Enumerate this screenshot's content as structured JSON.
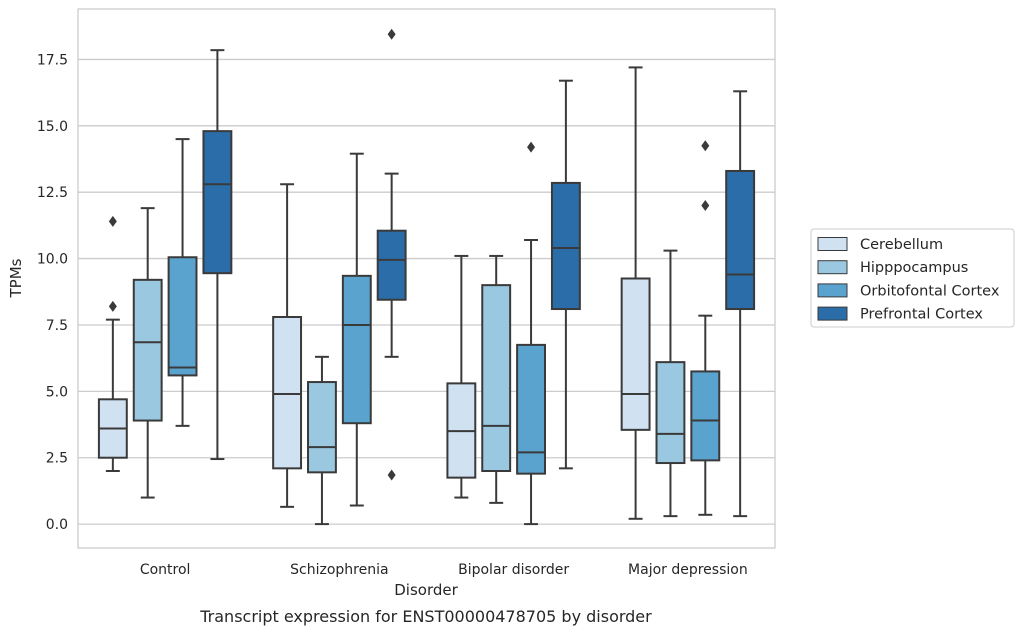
{
  "caption": "Transcript expression for ENST00000478705 by disorder",
  "chart_data": {
    "type": "box",
    "title": "",
    "xlabel": "Disorder",
    "ylabel": "TPMs",
    "ylim": [
      -0.9,
      19.4
    ],
    "yticks": [
      "0.0",
      "2.5",
      "5.0",
      "7.5",
      "10.0",
      "12.5",
      "15.0",
      "17.5"
    ],
    "ytick_values": [
      0,
      2.5,
      5,
      7.5,
      10,
      12.5,
      15,
      17.5
    ],
    "grid": "horizontal",
    "legend_position": "right",
    "categories": [
      "Control",
      "Schizophrenia",
      "Bipolar disorder",
      "Major depression"
    ],
    "series": [
      {
        "name": "Cerebellum",
        "color": "#d0e1f2",
        "boxes": [
          {
            "whisker_low": 2.0,
            "q1": 2.5,
            "median": 3.6,
            "q3": 4.7,
            "whisker_high": 7.7,
            "outliers": [
              8.2,
              11.4
            ]
          },
          {
            "whisker_low": 0.65,
            "q1": 2.1,
            "median": 4.9,
            "q3": 7.8,
            "whisker_high": 12.8,
            "outliers": []
          },
          {
            "whisker_low": 1.0,
            "q1": 1.75,
            "median": 3.5,
            "q3": 5.3,
            "whisker_high": 10.1,
            "outliers": []
          },
          {
            "whisker_low": 0.2,
            "q1": 3.55,
            "median": 4.9,
            "q3": 9.25,
            "whisker_high": 17.2,
            "outliers": []
          }
        ]
      },
      {
        "name": "Hipppocampus",
        "color": "#9ac8e0",
        "boxes": [
          {
            "whisker_low": 1.0,
            "q1": 3.9,
            "median": 6.85,
            "q3": 9.2,
            "whisker_high": 11.9,
            "outliers": []
          },
          {
            "whisker_low": 0.0,
            "q1": 1.95,
            "median": 2.9,
            "q3": 5.35,
            "whisker_high": 6.3,
            "outliers": []
          },
          {
            "whisker_low": 0.8,
            "q1": 2.0,
            "median": 3.7,
            "q3": 9.0,
            "whisker_high": 10.1,
            "outliers": []
          },
          {
            "whisker_low": 0.3,
            "q1": 2.3,
            "median": 3.4,
            "q3": 6.1,
            "whisker_high": 10.3,
            "outliers": []
          }
        ]
      },
      {
        "name": "Orbitofontal Cortex",
        "color": "#5ba3cf",
        "boxes": [
          {
            "whisker_low": 3.7,
            "q1": 5.6,
            "median": 5.9,
            "q3": 10.05,
            "whisker_high": 14.5,
            "outliers": []
          },
          {
            "whisker_low": 0.7,
            "q1": 3.8,
            "median": 7.5,
            "q3": 9.35,
            "whisker_high": 13.95,
            "outliers": []
          },
          {
            "whisker_low": 0.0,
            "q1": 1.9,
            "median": 2.7,
            "q3": 6.75,
            "whisker_high": 10.7,
            "outliers": [
              14.2
            ]
          },
          {
            "whisker_low": 0.35,
            "q1": 2.4,
            "median": 3.9,
            "q3": 5.75,
            "whisker_high": 7.85,
            "outliers": [
              12.0,
              14.25
            ]
          }
        ]
      },
      {
        "name": "Prefrontal Cortex",
        "color": "#2b6da8",
        "boxes": [
          {
            "whisker_low": 2.45,
            "q1": 9.45,
            "median": 12.8,
            "q3": 14.8,
            "whisker_high": 17.85,
            "outliers": []
          },
          {
            "whisker_low": 6.3,
            "q1": 8.45,
            "median": 9.95,
            "q3": 11.05,
            "whisker_high": 13.2,
            "outliers": [
              1.85,
              18.45
            ]
          },
          {
            "whisker_low": 2.1,
            "q1": 8.1,
            "median": 10.4,
            "q3": 12.85,
            "whisker_high": 16.7,
            "outliers": []
          },
          {
            "whisker_low": 0.3,
            "q1": 8.1,
            "median": 9.4,
            "q3": 13.3,
            "whisker_high": 16.3,
            "outliers": []
          }
        ]
      }
    ]
  }
}
